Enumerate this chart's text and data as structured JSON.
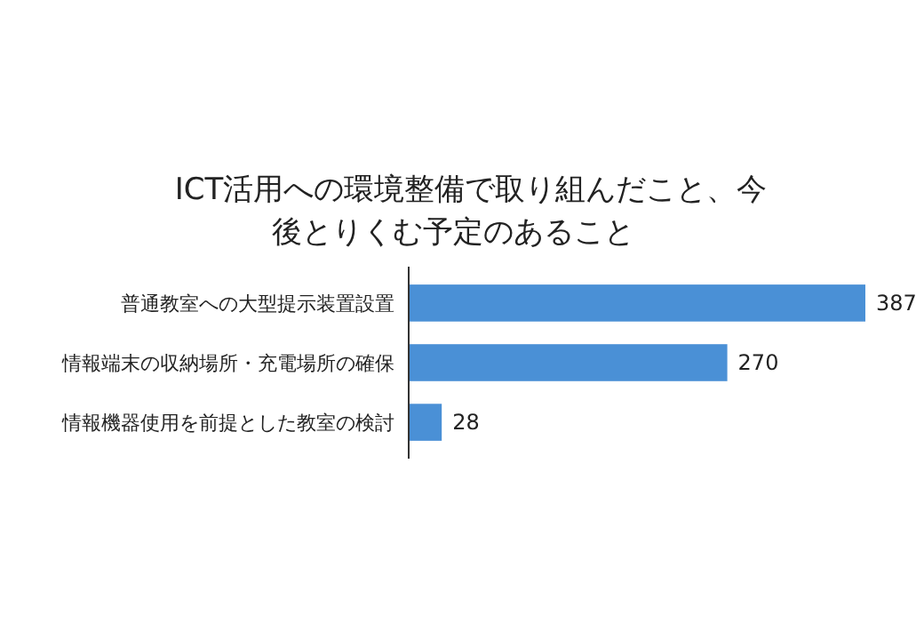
{
  "chart_data": {
    "type": "bar",
    "orientation": "horizontal",
    "title": "ICT活用への環境整備で取り組んだこと、今後とりくむ予定のあること",
    "categories": [
      "普通教室への大型提示装置設置",
      "情報端末の収納場所・充電場所の確保",
      "情報機器使用を前提とした教室の検討"
    ],
    "values": [
      387,
      270,
      28
    ],
    "color": "#4a90d6",
    "data_labels": true
  }
}
